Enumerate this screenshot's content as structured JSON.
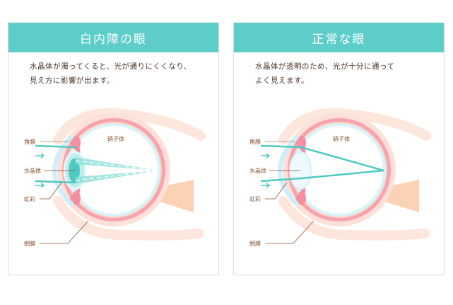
{
  "panels": [
    {
      "title": "白内障の眼",
      "description_lines": [
        "水晶体が濁ってくると、光が通りにくくなり、",
        "見え方に影響が出ます。"
      ],
      "variant": "cataract",
      "labels": {
        "cornea": "角膜",
        "lens": "水晶体",
        "iris": "虹彩",
        "retina": "網膜",
        "vitreous": "硝子体"
      }
    },
    {
      "title": "正常な眼",
      "description_lines": [
        "水晶体が透明のため、光が十分に通って",
        "よく見えます。"
      ],
      "variant": "normal",
      "labels": {
        "cornea": "角膜",
        "lens": "水晶体",
        "iris": "虹彩",
        "retina": "網膜",
        "vitreous": "硝子体"
      }
    }
  ],
  "colors": {
    "header": "#5ccdc8",
    "light_ray": "#4fc9c2",
    "sclera": "#f7a2b0",
    "text": "#4a3426"
  }
}
